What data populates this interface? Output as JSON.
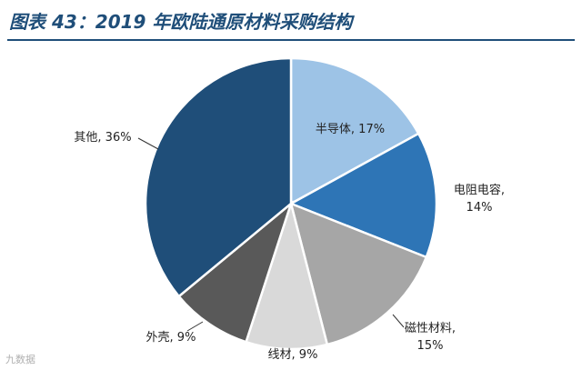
{
  "header": {
    "title": "图表 43：2019 年欧陆通原材料采购结构"
  },
  "watermark": "九数据",
  "chart_data": {
    "type": "pie",
    "start_angle_deg": 0,
    "direction": "clockwise",
    "slices": [
      {
        "label": "半导体",
        "value": 17,
        "color": "#9dc3e6",
        "text": "半导体, 17%"
      },
      {
        "label": "电阻电容",
        "value": 14,
        "color": "#2e75b6",
        "text": [
          "电阻电容,",
          "14%"
        ]
      },
      {
        "label": "磁性材料",
        "value": 15,
        "color": "#a6a6a6",
        "text": [
          "磁性材料,",
          "15%"
        ]
      },
      {
        "label": "线材",
        "value": 9,
        "color": "#d9d9d9",
        "text": "线材, 9%"
      },
      {
        "label": "外壳",
        "value": 9,
        "color": "#595959",
        "text": "外壳, 9%"
      },
      {
        "label": "其他",
        "value": 36,
        "color": "#1f4e79",
        "text": "其他, 36%"
      }
    ]
  }
}
